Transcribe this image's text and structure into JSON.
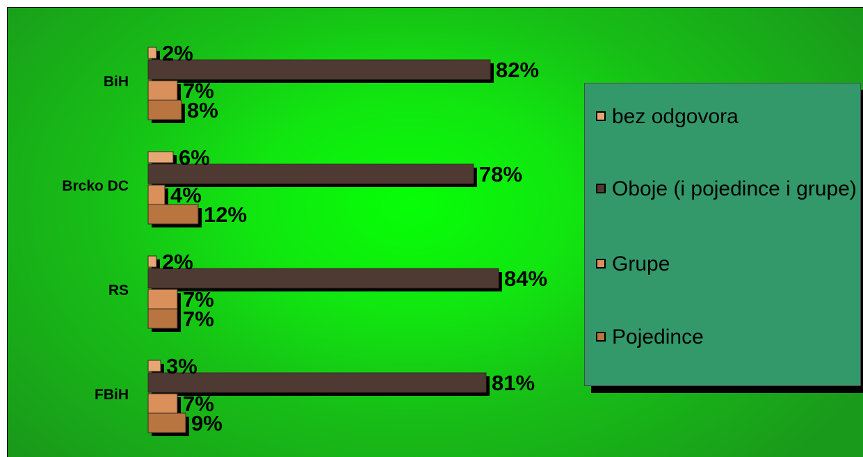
{
  "chart_data": {
    "type": "bar",
    "orientation": "horizontal",
    "categories": [
      "BiH",
      "Brcko DC",
      "RS",
      "FBiH"
    ],
    "series": [
      {
        "name": "bez odgovora",
        "color": "#e6a774",
        "values": [
          2,
          6,
          2,
          3
        ]
      },
      {
        "name": "Oboje (i pojedince i grupe)",
        "color": "#4f3a33",
        "values": [
          82,
          78,
          84,
          81
        ]
      },
      {
        "name": "Grupe",
        "color": "#d9905a",
        "values": [
          7,
          4,
          7,
          7
        ]
      },
      {
        "name": "Pojedince",
        "color": "#b8753f",
        "values": [
          8,
          12,
          7,
          9
        ]
      }
    ],
    "value_suffix": "%",
    "xlim": [
      0,
      100
    ],
    "grid": false,
    "legend_position": "right"
  },
  "legend": {
    "items": [
      {
        "label": "bez odgovora",
        "color": "#e6a774"
      },
      {
        "label": "Oboje (i pojedince i grupe)",
        "color": "#4f3a33"
      },
      {
        "label": "Grupe",
        "color": "#d9905a"
      },
      {
        "label": "Pojedince",
        "color": "#b8753f"
      }
    ]
  }
}
